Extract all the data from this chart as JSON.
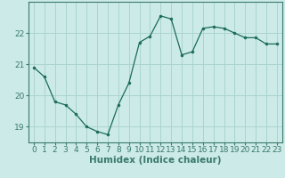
{
  "x": [
    0,
    1,
    2,
    3,
    4,
    5,
    6,
    7,
    8,
    9,
    10,
    11,
    12,
    13,
    14,
    15,
    16,
    17,
    18,
    19,
    20,
    21,
    22,
    23
  ],
  "y": [
    20.9,
    20.6,
    19.8,
    19.7,
    19.4,
    19.0,
    18.85,
    18.75,
    19.7,
    20.4,
    21.7,
    21.9,
    22.55,
    22.45,
    21.3,
    21.4,
    22.15,
    22.2,
    22.15,
    22.0,
    21.85,
    21.85,
    21.65,
    21.65
  ],
  "line_color": "#1a6b5a",
  "marker": "o",
  "marker_size": 2.0,
  "bg_color": "#cceae8",
  "grid_color": "#aad4d0",
  "xlabel": "Humidex (Indice chaleur)",
  "ylim": [
    18.5,
    23.0
  ],
  "yticks": [
    19,
    20,
    21,
    22
  ],
  "xlim": [
    -0.5,
    23.5
  ],
  "xticks": [
    0,
    1,
    2,
    3,
    4,
    5,
    6,
    7,
    8,
    9,
    10,
    11,
    12,
    13,
    14,
    15,
    16,
    17,
    18,
    19,
    20,
    21,
    22,
    23
  ],
  "tick_fontsize": 6.5,
  "xlabel_fontsize": 7.5,
  "spine_color": "#3a7a6a"
}
